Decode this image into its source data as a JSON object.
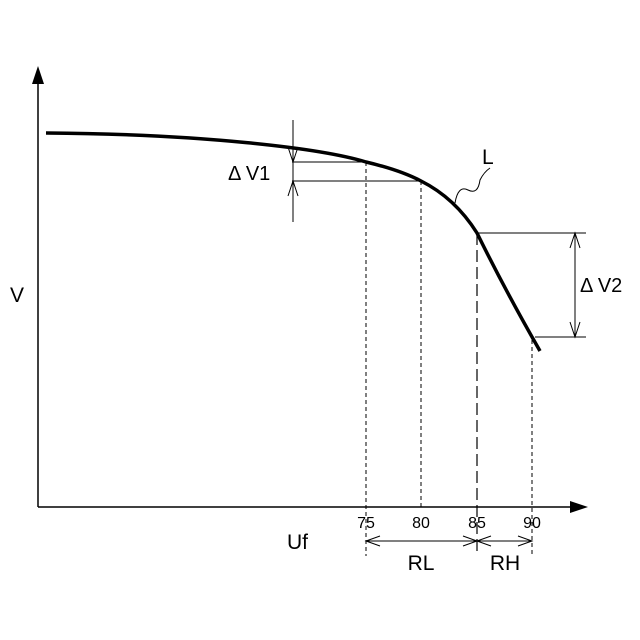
{
  "labels": {
    "y_axis": "V",
    "x_axis": "Uf",
    "curve": "L",
    "delta_v1": "Δ V1",
    "delta_v2": "Δ V2",
    "range_low": "RL",
    "range_high": "RH"
  },
  "x_ticks": [
    "75",
    "80",
    "85",
    "90"
  ],
  "colors": {
    "line": "#000000",
    "background": "#ffffff"
  }
}
